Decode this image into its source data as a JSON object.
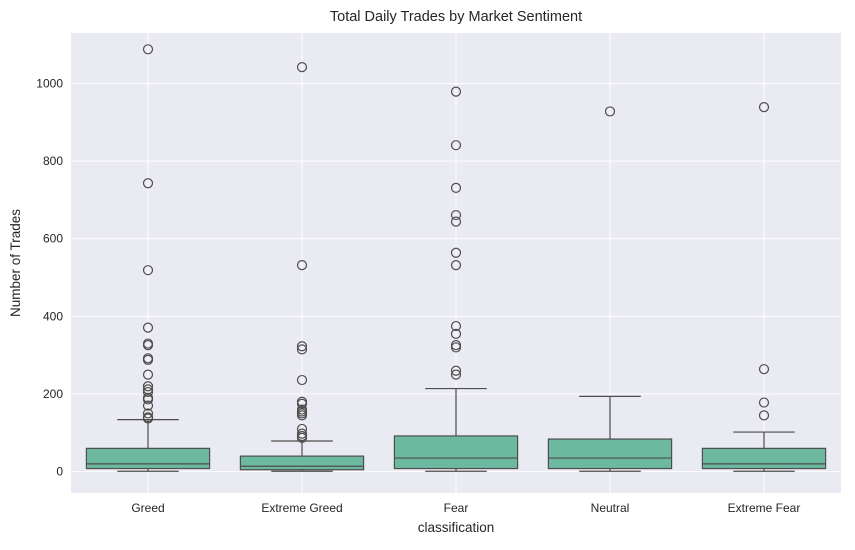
{
  "chart_data": {
    "type": "box",
    "title": "Total Daily Trades by Market Sentiment",
    "xlabel": "classification",
    "ylabel": "Number of Trades",
    "categories": [
      "Greed",
      "Extreme Greed",
      "Fear",
      "Neutral",
      "Extreme Fear"
    ],
    "ylim": [
      -55,
      1130
    ],
    "yticks": [
      0,
      200,
      400,
      600,
      800,
      1000
    ],
    "grid": true,
    "colors": {
      "box_fill": "#6cb9a0",
      "line": "#4d4d4d",
      "plot_bg": "#eaeaf2",
      "grid": "#ffffff"
    },
    "boxes": [
      {
        "category": "Greed",
        "whisker_low": 1,
        "q1": 8,
        "median": 20,
        "q3": 60,
        "whisker_high": 134,
        "outliers": [
          1088,
          743,
          519,
          371,
          330,
          326,
          292,
          288,
          250,
          220,
          212,
          205,
          190,
          186,
          170,
          150,
          140,
          137
        ]
      },
      {
        "category": "Extreme Greed",
        "whisker_low": 1,
        "q1": 5,
        "median": 14,
        "q3": 40,
        "whisker_high": 79,
        "outliers": [
          1042,
          532,
          323,
          315,
          236,
          180,
          175,
          160,
          155,
          150,
          145,
          110,
          98,
          92,
          87
        ]
      },
      {
        "category": "Fear",
        "whisker_low": 1,
        "q1": 8,
        "median": 35,
        "q3": 92,
        "whisker_high": 214,
        "outliers": [
          979,
          841,
          731,
          661,
          644,
          564,
          532,
          375,
          355,
          326,
          320,
          260,
          250
        ]
      },
      {
        "category": "Neutral",
        "whisker_low": 1,
        "q1": 8,
        "median": 35,
        "q3": 84,
        "whisker_high": 194,
        "outliers": [
          928
        ]
      },
      {
        "category": "Extreme Fear",
        "whisker_low": 1,
        "q1": 8,
        "median": 20,
        "q3": 60,
        "whisker_high": 102,
        "outliers": [
          939,
          264,
          178,
          145
        ]
      }
    ]
  }
}
